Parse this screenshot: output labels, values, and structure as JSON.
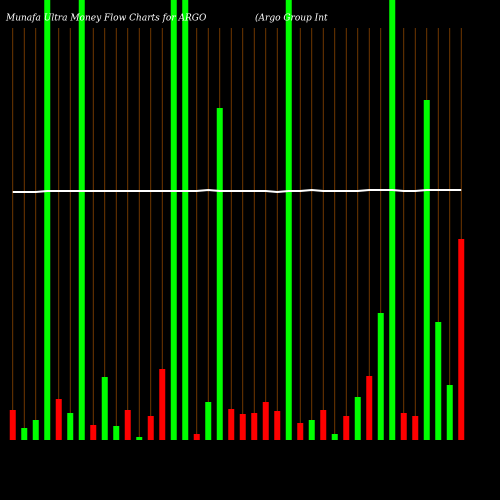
{
  "chart_data": {
    "type": "bar",
    "title": "Munafa Ultra Money Flow Charts for ARGO",
    "subtitle": "(Argo Group Int",
    "categories": [
      null,
      null,
      null,
      null,
      null,
      null,
      null,
      null,
      null,
      null,
      null,
      null,
      null,
      null,
      null,
      null,
      null,
      null,
      null,
      null,
      null,
      null,
      null,
      null,
      null,
      null,
      null,
      null,
      null,
      null,
      null,
      null,
      null,
      null,
      null,
      null,
      null,
      null,
      null,
      null
    ],
    "values": [
      30,
      12,
      20,
      440,
      41,
      27,
      440,
      15,
      63,
      14,
      30,
      3,
      24,
      71,
      440,
      440,
      6,
      38,
      332,
      31,
      26,
      27,
      38,
      29,
      440,
      17,
      20,
      30,
      6,
      24,
      43,
      64,
      127,
      440,
      27,
      24,
      340,
      118,
      55,
      201
    ],
    "colors": [
      "#ff0000",
      "#00ff00",
      "#00ff00",
      "#00ff00",
      "#ff0000",
      "#00ff00",
      "#00ff00",
      "#ff0000",
      "#00ff00",
      "#00ff00",
      "#ff0000",
      "#00ff00",
      "#ff0000",
      "#ff0000",
      "#00ff00",
      "#00ff00",
      "#ff0000",
      "#00ff00",
      "#00ff00",
      "#ff0000",
      "#ff0000",
      "#ff0000",
      "#ff0000",
      "#ff0000",
      "#00ff00",
      "#ff0000",
      "#00ff00",
      "#ff0000",
      "#00ff00",
      "#ff0000",
      "#00ff00",
      "#ff0000",
      "#00ff00",
      "#00ff00",
      "#ff0000",
      "#ff0000",
      "#00ff00",
      "#00ff00",
      "#00ff00",
      "#ff0000"
    ],
    "line": {
      "color": "#ffffff",
      "values": [
        248,
        248,
        248,
        249,
        249,
        249,
        249,
        249,
        249,
        249,
        249,
        249,
        249,
        249,
        249,
        249,
        249,
        250,
        249,
        249,
        249,
        249,
        249,
        248,
        249,
        249,
        250,
        249,
        249,
        249,
        249,
        250,
        250,
        250,
        249,
        249,
        250,
        250,
        250,
        250
      ]
    },
    "ylim": [
      0,
      440
    ]
  }
}
